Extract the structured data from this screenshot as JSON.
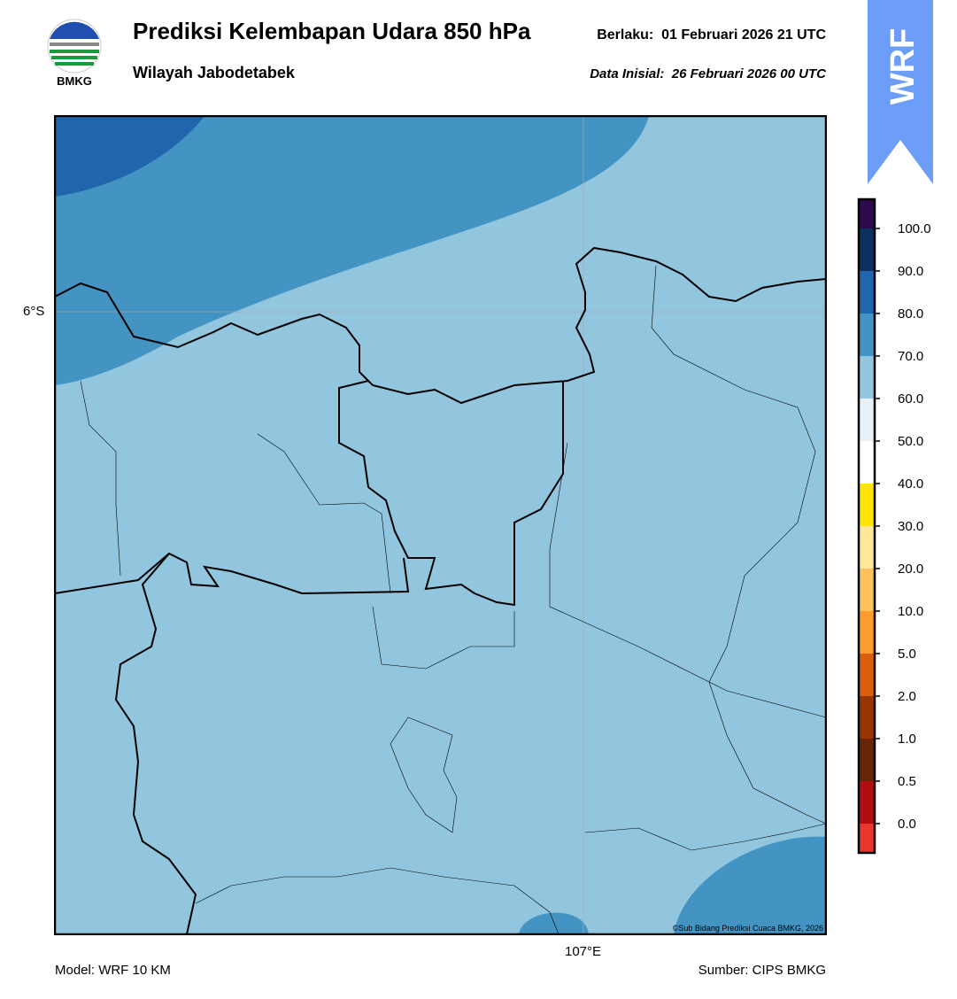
{
  "header": {
    "title": "Prediksi Kelembapan Udara 850 hPa",
    "subtitle": "Wilayah Jabodetabek",
    "valid_label": "Berlaku:",
    "valid": "01 Februari 2026 21 UTC",
    "init_label": "Data Inisial:",
    "init": "26 Februari 2026 00 UTC",
    "logo": "BMKG",
    "badge": "WRF"
  },
  "map": {
    "lat_label": "6°S",
    "lon_label": "107°E",
    "copyright": "©Sub Bidang Prediksi Cuaca BMKG, 2026"
  },
  "colorbar": {
    "ticks": [
      "100.0",
      "90.0",
      "80.0",
      "70.0",
      "60.0",
      "50.0",
      "40.0",
      "30.0",
      "20.0",
      "10.0",
      "5.0",
      "2.0",
      "1.0",
      "0.5",
      "0.0"
    ],
    "colors": [
      "#2d0a4e",
      "#0b2f5e",
      "#2165ad",
      "#4393c3",
      "#92c5de",
      "#e8f0f7",
      "#ffffff",
      "#ffe500",
      "#ffe79a",
      "#fec25c",
      "#fd9c2e",
      "#d95f0e",
      "#993404",
      "#662506",
      "#b30d14",
      "#e8372c"
    ]
  },
  "footer": {
    "model": "Model: WRF 10 KM",
    "source": "Sumber: CIPS BMKG"
  }
}
